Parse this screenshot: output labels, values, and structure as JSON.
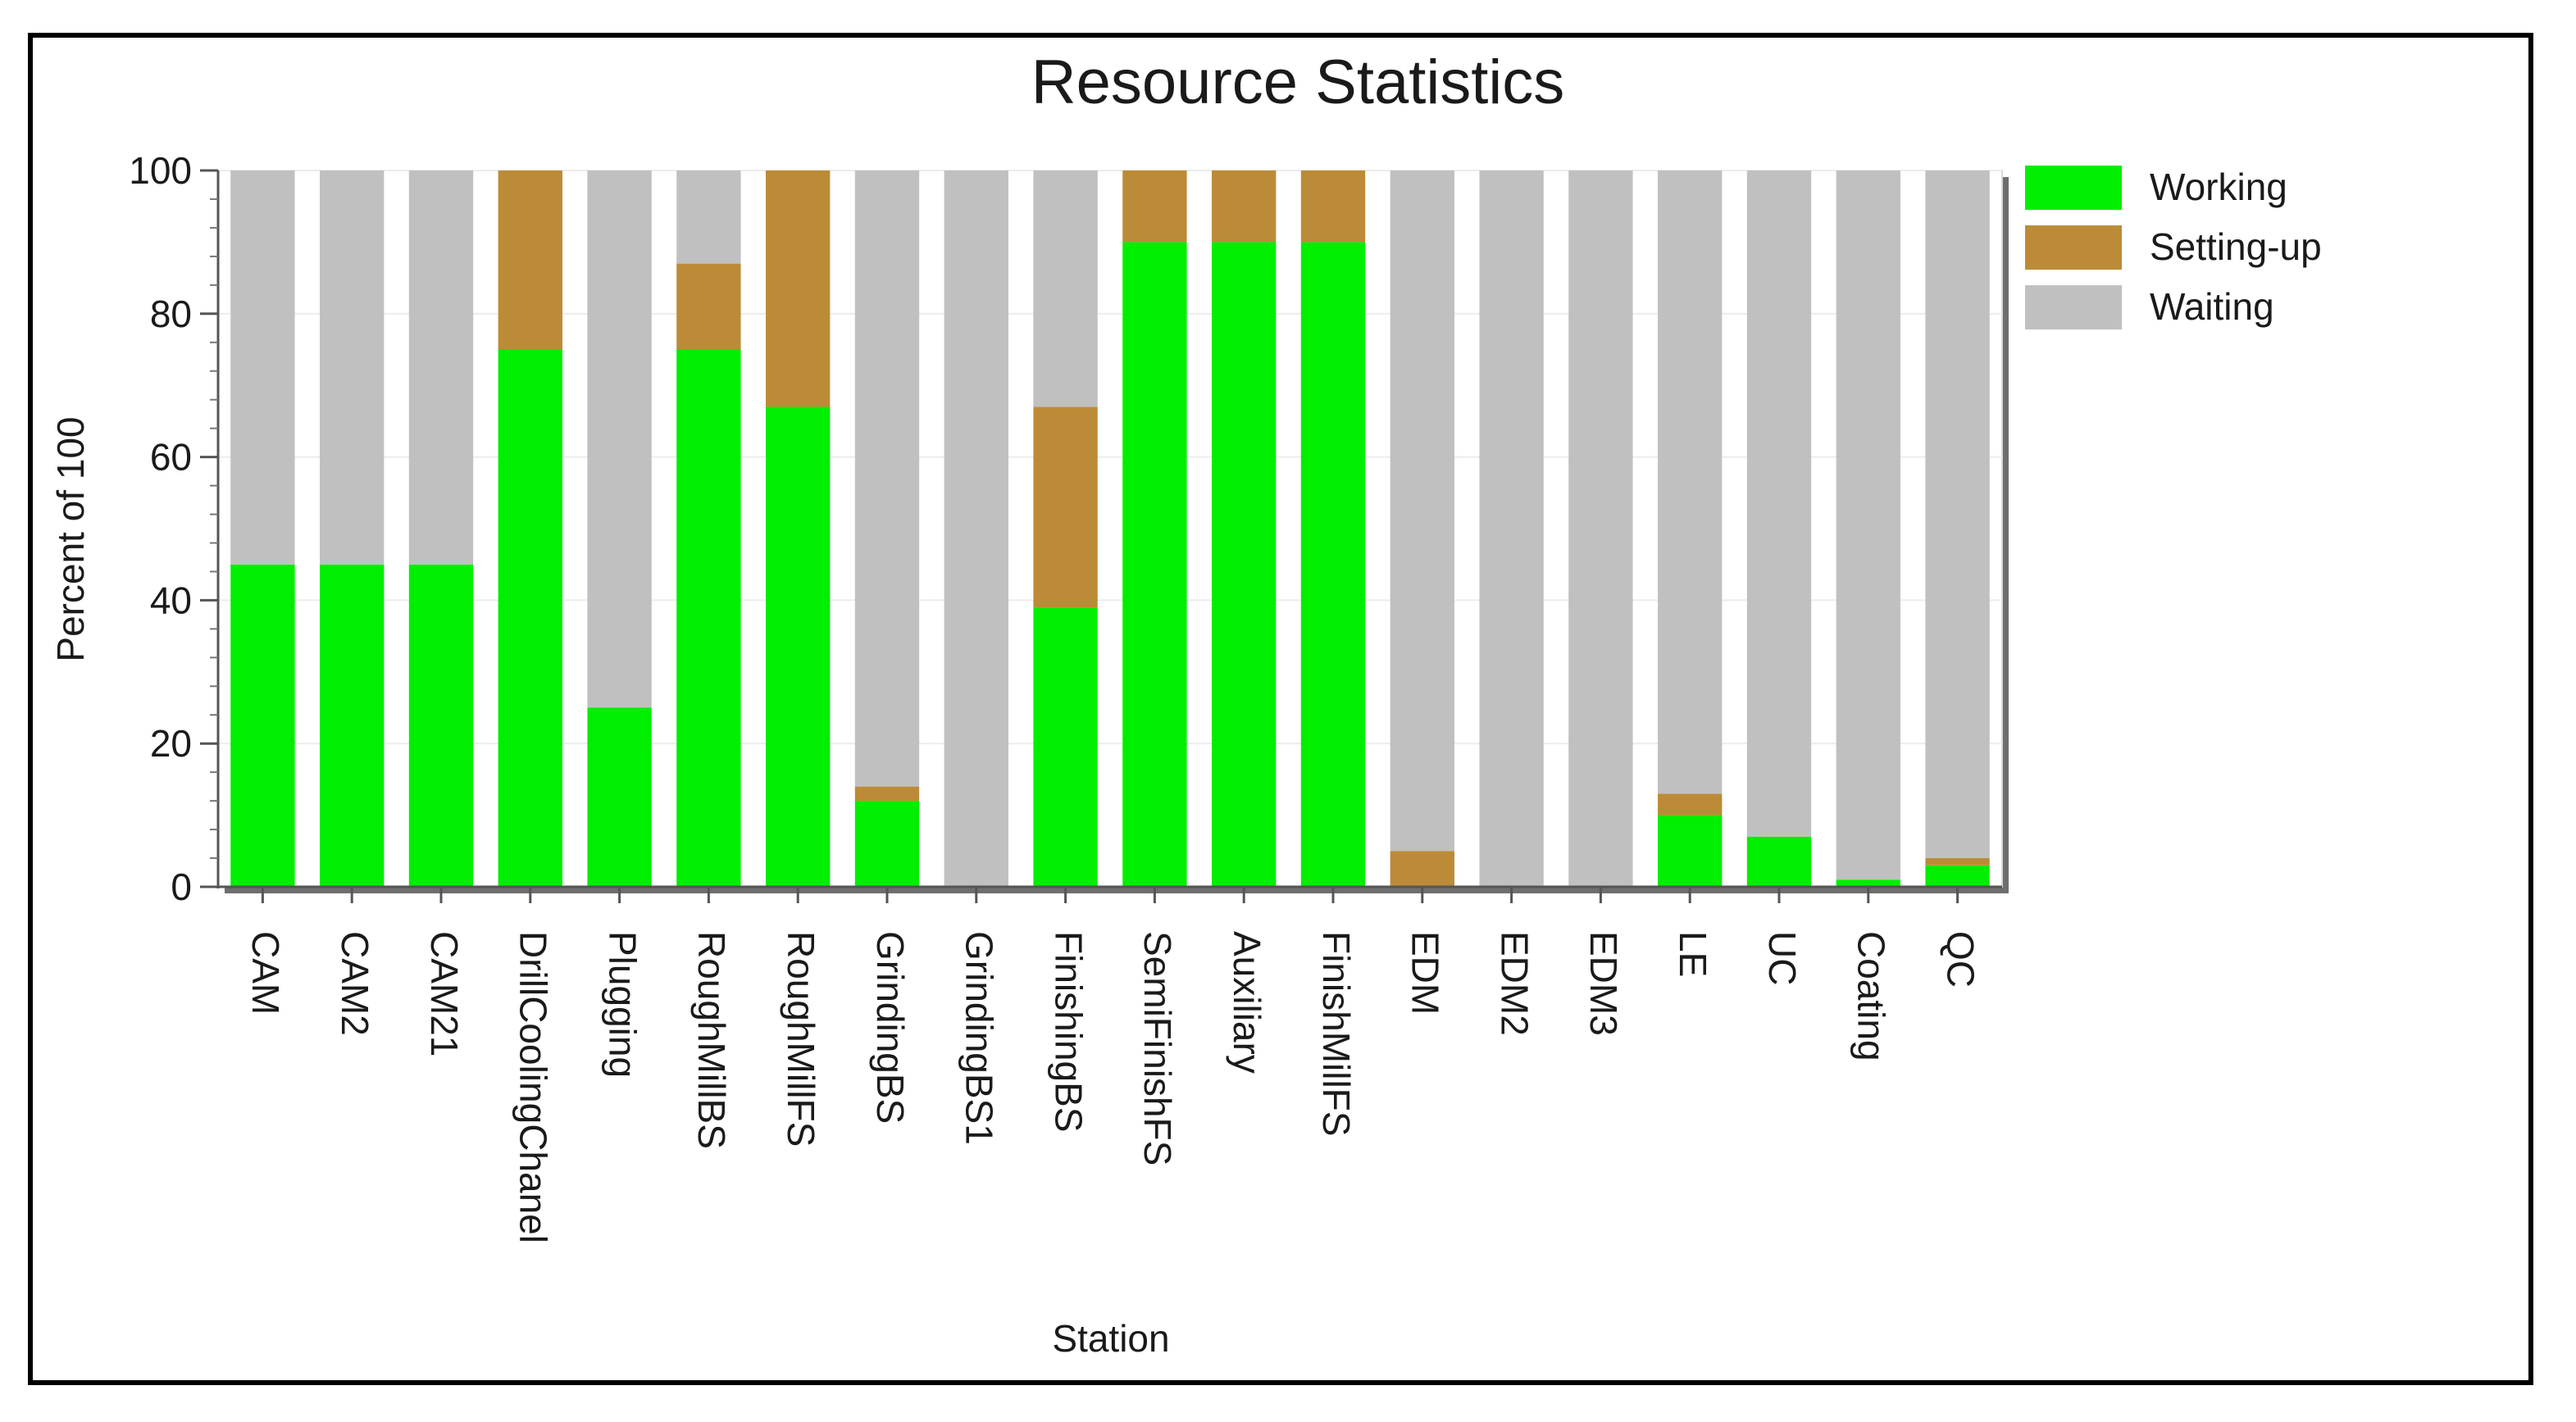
{
  "chart_data": {
    "type": "bar",
    "stacked": true,
    "title": "Resource Statistics",
    "xlabel": "Station",
    "ylabel": "Percent of 100",
    "ylim": [
      0,
      100
    ],
    "yticks": [
      0,
      20,
      40,
      60,
      80,
      100
    ],
    "legend_position": "top-right",
    "categories": [
      "CAM",
      "CAM2",
      "CAM21",
      "DrillCoolingChanel",
      "Plugging",
      "RoughMillBS",
      "RoughMillFS",
      "GrindingBS",
      "GrindingBS1",
      "FinishingBS",
      "SemiFinishFS",
      "Auxiliary",
      "FinishMillFS",
      "EDM",
      "EDM2",
      "EDM3",
      "LE",
      "UC",
      "Coating",
      "QC"
    ],
    "series": [
      {
        "name": "Working",
        "color": "#00ee00",
        "values": [
          45,
          45,
          45,
          75,
          25,
          75,
          67,
          12,
          0,
          39,
          90,
          90,
          90,
          0,
          0,
          0,
          10,
          7,
          1,
          3
        ]
      },
      {
        "name": "Setting-up",
        "color": "#bc8b37",
        "values": [
          0,
          0,
          0,
          25,
          0,
          12,
          33,
          2,
          0,
          28,
          10,
          10,
          10,
          5,
          0,
          0,
          3,
          0,
          0,
          1
        ]
      },
      {
        "name": "Waiting",
        "color": "#c0c0c0",
        "values": [
          55,
          55,
          55,
          0,
          75,
          13,
          0,
          86,
          100,
          33,
          0,
          0,
          0,
          95,
          100,
          100,
          87,
          93,
          99,
          96
        ]
      }
    ]
  }
}
